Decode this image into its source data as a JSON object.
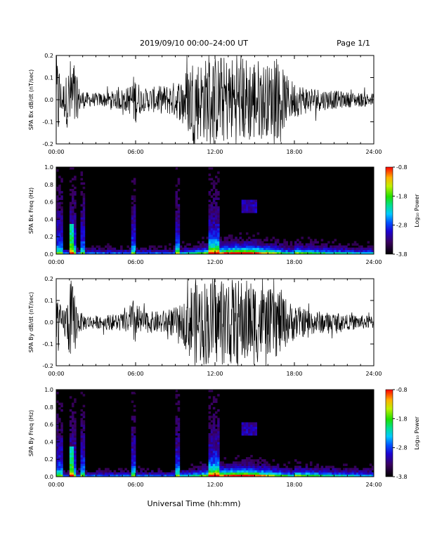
{
  "header": {
    "title": "2019/09/10   00:00–24:00 UT",
    "page": "Page 1/1"
  },
  "x_title": "Universal Time (hh:mm)",
  "x_ticks": [
    "00:00",
    "06:00",
    "12:00",
    "18:00",
    "24:00"
  ],
  "colorbar": {
    "label": "Log₁₀ Power",
    "ticks": [
      "-0.8",
      "-1.8",
      "-2.8",
      "-3.8"
    ],
    "range": [
      -3.8,
      -0.8
    ]
  },
  "chart_data": [
    {
      "type": "line",
      "ylabel": "SPA Bx dB/dt (nT/sec)",
      "ylim": [
        -0.2,
        0.2
      ],
      "yticks": [
        "0.2",
        "0.1",
        "0.0",
        "-0.1",
        "-0.2"
      ],
      "xlim_hours": [
        0,
        24
      ],
      "envelope": {
        "hours": [
          0,
          0.2,
          0.4,
          0.8,
          1.1,
          1.3,
          1.7,
          2.2,
          3,
          4,
          5.5,
          5.9,
          6.5,
          7.5,
          8.5,
          9.5,
          10.3,
          11,
          11.5,
          12,
          13,
          14,
          15,
          16,
          16.8,
          17.5,
          18.5,
          20,
          22,
          24
        ],
        "amplitude": [
          0.2,
          0.2,
          0.06,
          0.12,
          0.2,
          0.2,
          0.06,
          0.035,
          0.03,
          0.035,
          0.06,
          0.12,
          0.05,
          0.06,
          0.07,
          0.1,
          0.2,
          0.18,
          0.2,
          0.2,
          0.2,
          0.2,
          0.2,
          0.16,
          0.18,
          0.1,
          0.07,
          0.05,
          0.035,
          0.03
        ]
      }
    },
    {
      "type": "heatmap",
      "ylabel": "SPA Bx Freq (Hz)",
      "ylim": [
        0.0,
        1.0
      ],
      "yticks": [
        "1.0",
        "0.8",
        "0.6",
        "0.4",
        "0.2",
        "0.0"
      ],
      "xlim_hours": [
        0,
        24
      ],
      "zlim": [
        -3.8,
        -0.8
      ]
    },
    {
      "type": "line",
      "ylabel": "SPA By dB/dt (nT/sec)",
      "ylim": [
        -0.2,
        0.2
      ],
      "yticks": [
        "0.2",
        "0.1",
        "0.0",
        "-0.1",
        "-0.2"
      ],
      "xlim_hours": [
        0,
        24
      ],
      "envelope": {
        "hours": [
          0,
          0.2,
          0.4,
          0.8,
          1.1,
          1.3,
          1.7,
          2.2,
          3,
          4,
          5.5,
          5.9,
          6.5,
          7.5,
          8.5,
          9.5,
          10.3,
          11,
          11.5,
          12,
          13,
          14,
          15,
          16,
          16.8,
          17.5,
          18.5,
          20,
          22,
          24
        ],
        "amplitude": [
          0.2,
          0.12,
          0.05,
          0.1,
          0.2,
          0.17,
          0.05,
          0.035,
          0.03,
          0.035,
          0.05,
          0.12,
          0.05,
          0.05,
          0.06,
          0.08,
          0.2,
          0.2,
          0.2,
          0.2,
          0.2,
          0.2,
          0.2,
          0.15,
          0.17,
          0.1,
          0.07,
          0.05,
          0.035,
          0.03
        ]
      }
    },
    {
      "type": "heatmap",
      "ylabel": "SPA By Freq (Hz)",
      "ylim": [
        0.0,
        1.0
      ],
      "yticks": [
        "1.0",
        "0.8",
        "0.6",
        "0.4",
        "0.2",
        "0.0"
      ],
      "xlim_hours": [
        0,
        24
      ],
      "zlim": [
        -3.8,
        -0.8
      ]
    }
  ]
}
